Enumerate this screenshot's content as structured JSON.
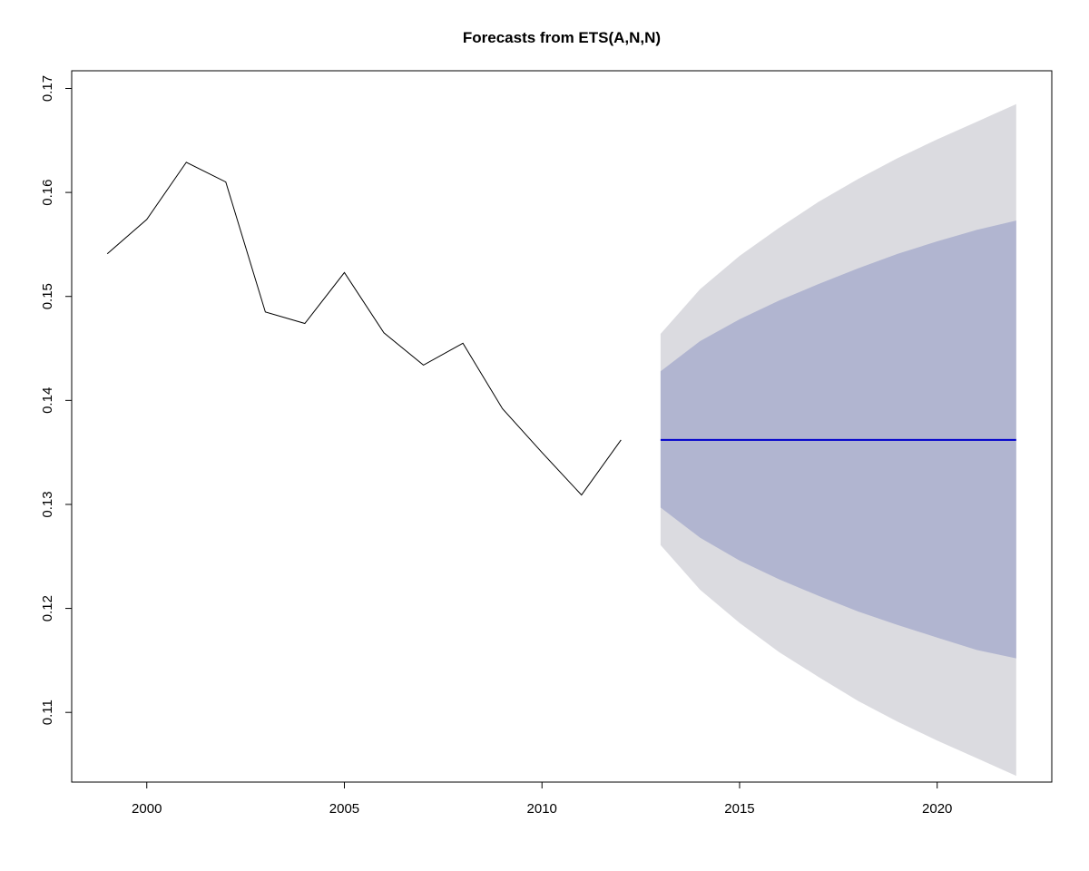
{
  "chart_data": {
    "type": "line",
    "title": "Forecasts from ETS(A,N,N)",
    "xlabel": "",
    "ylabel": "",
    "xlim": [
      1998.1,
      2022.9
    ],
    "ylim": [
      0.1033,
      0.1717
    ],
    "x_ticks": [
      2000,
      2005,
      2010,
      2015,
      2020
    ],
    "y_ticks": [
      0.11,
      0.12,
      0.13,
      0.14,
      0.15,
      0.16,
      0.17
    ],
    "grid": false,
    "legend": "none",
    "colors": {
      "actual": "#000000",
      "forecast": "#0000cc",
      "interval_95": "#dbdbe0",
      "interval_80": "#b1b5d0"
    },
    "series": [
      {
        "role": "actual",
        "x": [
          1999,
          2000,
          2001,
          2002,
          2003,
          2004,
          2005,
          2006,
          2007,
          2008,
          2009,
          2010,
          2011,
          2012
        ],
        "values": [
          0.1541,
          0.1574,
          0.1629,
          0.161,
          0.1485,
          0.1474,
          0.1523,
          0.1465,
          0.1434,
          0.1455,
          0.1392,
          0.135,
          0.1309,
          0.1362
        ]
      },
      {
        "role": "forecast",
        "x": [
          2013,
          2014,
          2015,
          2016,
          2017,
          2018,
          2019,
          2020,
          2021,
          2022
        ],
        "values": [
          0.1362,
          0.1362,
          0.1362,
          0.1362,
          0.1362,
          0.1362,
          0.1362,
          0.1362,
          0.1362,
          0.1362
        ]
      }
    ],
    "intervals": [
      {
        "level": 95,
        "x": [
          2013,
          2014,
          2015,
          2016,
          2017,
          2018,
          2019,
          2020,
          2021,
          2022
        ],
        "lower": [
          0.1261,
          0.1218,
          0.1186,
          0.1158,
          0.1134,
          0.1111,
          0.1091,
          0.1073,
          0.1056,
          0.1039
        ],
        "upper": [
          0.1464,
          0.1507,
          0.1539,
          0.1566,
          0.1591,
          0.1613,
          0.1633,
          0.1651,
          0.1668,
          0.1685
        ]
      },
      {
        "level": 80,
        "x": [
          2013,
          2014,
          2015,
          2016,
          2017,
          2018,
          2019,
          2020,
          2021,
          2022
        ],
        "lower": [
          0.1297,
          0.1268,
          0.1246,
          0.1228,
          0.1212,
          0.1197,
          0.1184,
          0.1172,
          0.116,
          0.1152
        ],
        "upper": [
          0.1428,
          0.1457,
          0.1478,
          0.1496,
          0.1512,
          0.1527,
          0.1541,
          0.1553,
          0.1564,
          0.1573
        ]
      }
    ]
  }
}
